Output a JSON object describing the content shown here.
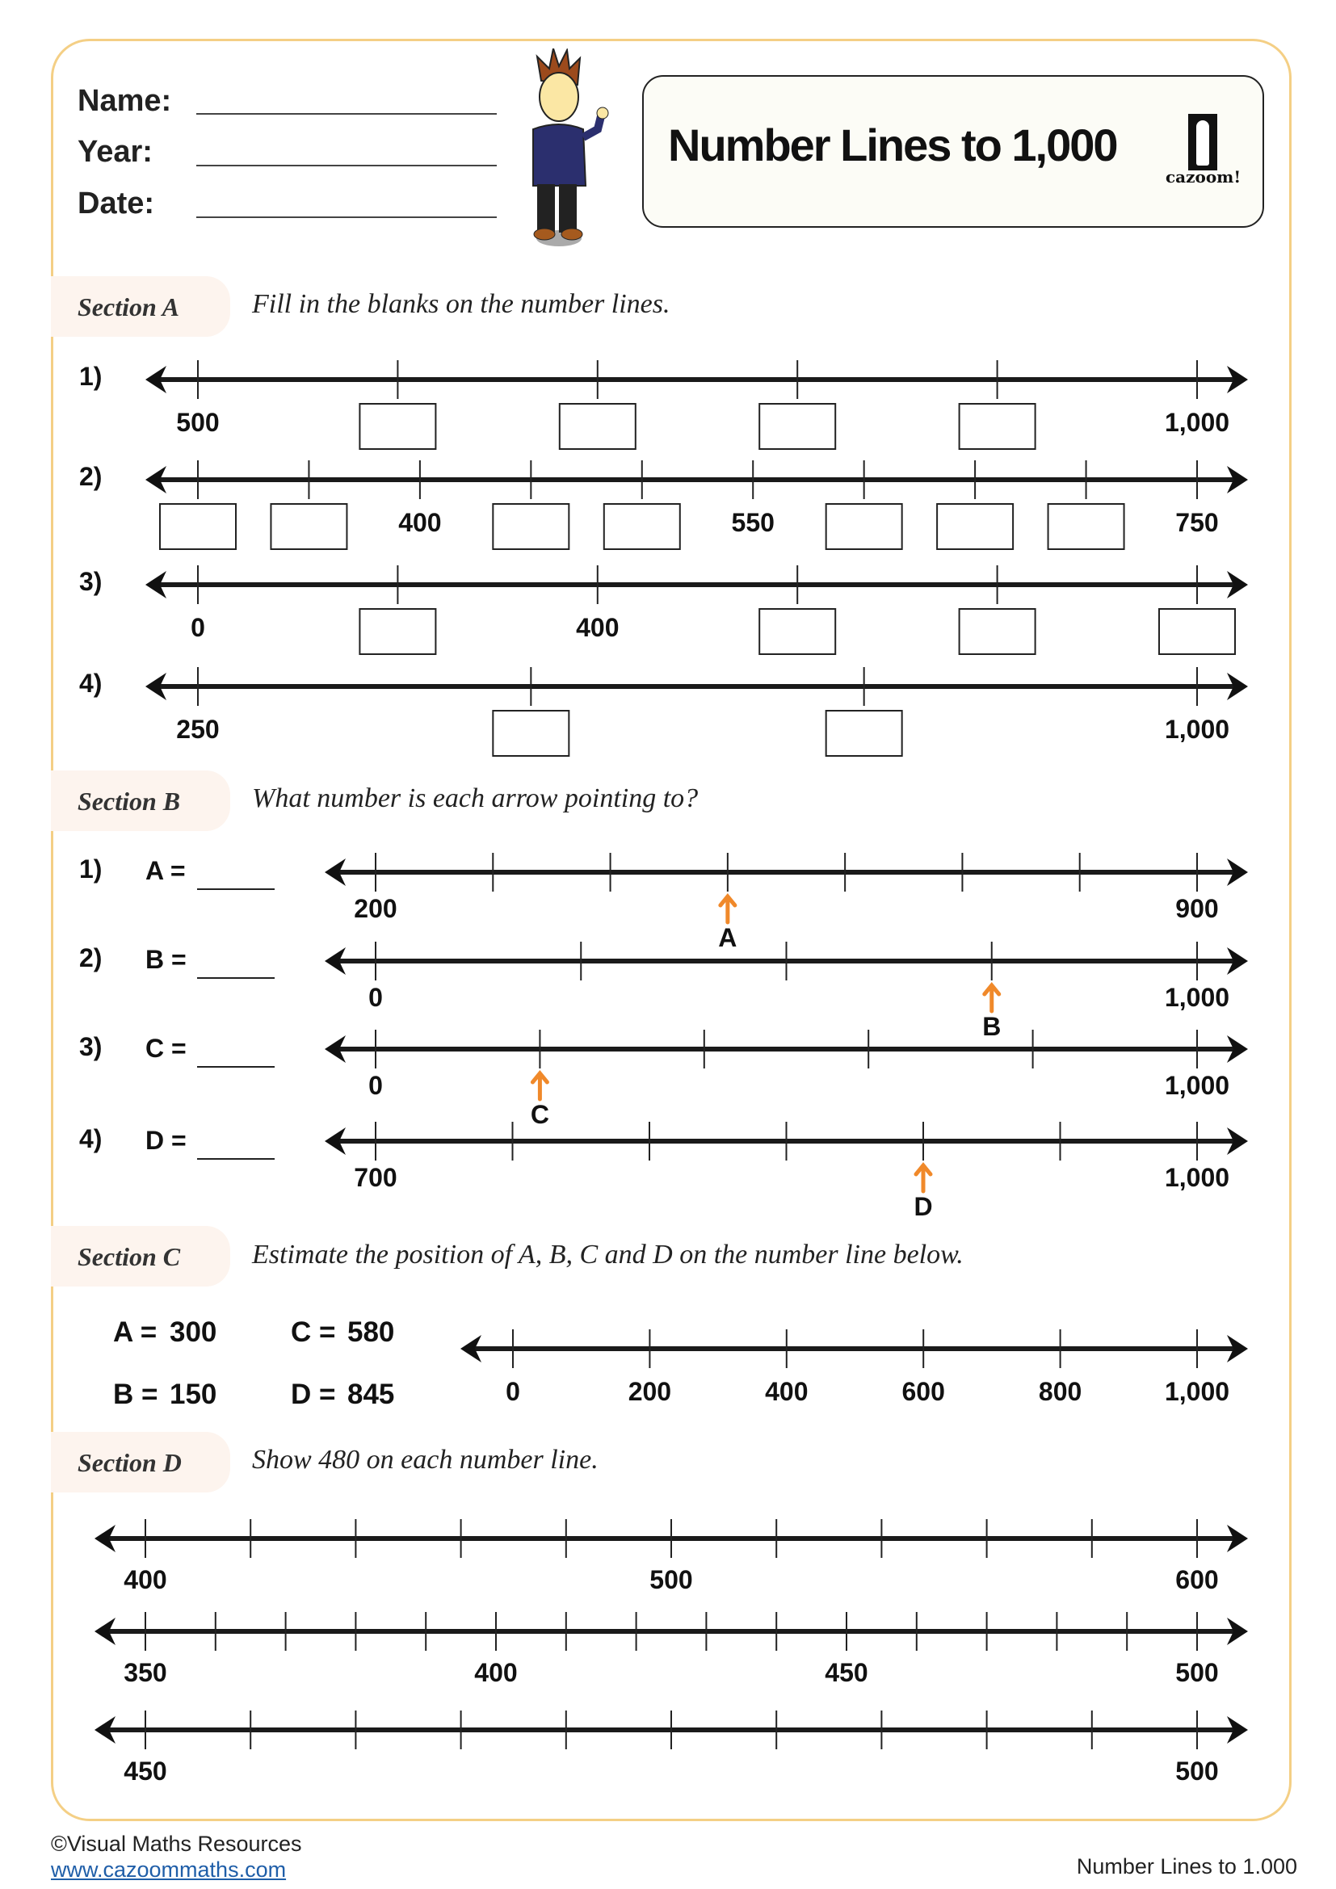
{
  "header": {
    "fields": [
      {
        "label": "Name:"
      },
      {
        "label": "Year:"
      },
      {
        "label": "Date:"
      }
    ],
    "title": "Number Lines to 1,000",
    "logo_text": "cazoom!"
  },
  "colors": {
    "frame": "#f4cf85",
    "tab": "#fdf4ee",
    "arrow_marker": "#f0892a",
    "link": "#1f5ea8"
  },
  "section_a": {
    "label": "Section A",
    "instruction": "Fill in the blanks on the number lines.",
    "questions": [
      {
        "num": "1)",
        "labels": [
          "500",
          null,
          null,
          null,
          null,
          "1,000"
        ]
      },
      {
        "num": "2)",
        "labels": [
          null,
          null,
          "400",
          null,
          null,
          "550",
          null,
          null,
          null,
          "750"
        ]
      },
      {
        "num": "3)",
        "labels": [
          "0",
          null,
          "400",
          null,
          null,
          null
        ]
      },
      {
        "num": "4)",
        "labels": [
          "250",
          null,
          null,
          "1,000"
        ]
      }
    ]
  },
  "section_b": {
    "label": "Section B",
    "instruction": "What number is each arrow pointing to?",
    "questions": [
      {
        "num": "1)",
        "letter": "A",
        "prompt": "A =",
        "start": "200",
        "end": "900",
        "ticks": 8,
        "arrow_tick": 3
      },
      {
        "num": "2)",
        "letter": "B",
        "prompt": "B =",
        "start": "0",
        "end": "1,000",
        "ticks": 5,
        "arrow_tick": 3
      },
      {
        "num": "3)",
        "letter": "C",
        "prompt": "C =",
        "start": "0",
        "end": "1,000",
        "ticks": 6,
        "arrow_tick": 1
      },
      {
        "num": "4)",
        "letter": "D",
        "prompt": "D =",
        "start": "700",
        "end": "1,000",
        "ticks": 7,
        "arrow_tick": 4
      }
    ]
  },
  "section_c": {
    "label": "Section C",
    "instruction": "Estimate the position of A, B, C and D on the number line below.",
    "values": [
      {
        "name": "A =",
        "value": "300"
      },
      {
        "name": "B =",
        "value": "150"
      },
      {
        "name": "C =",
        "value": "580"
      },
      {
        "name": "D =",
        "value": "845"
      }
    ],
    "tick_labels": [
      "0",
      "200",
      "400",
      "600",
      "800",
      "1,000"
    ]
  },
  "section_d": {
    "label": "Section D",
    "instruction": "Show 480 on each number line.",
    "lines": [
      {
        "ticks": 11,
        "labels": {
          "0": "400",
          "5": "500",
          "10": "600"
        }
      },
      {
        "ticks": 16,
        "labels": {
          "0": "350",
          "5": "400",
          "10": "450",
          "15": "500"
        }
      },
      {
        "ticks": 11,
        "labels": {
          "0": "450",
          "10": "500"
        }
      }
    ]
  },
  "footer": {
    "copyright": "©Visual Maths Resources",
    "link": "www.cazoommaths.com",
    "title": "Number Lines to 1.000"
  }
}
